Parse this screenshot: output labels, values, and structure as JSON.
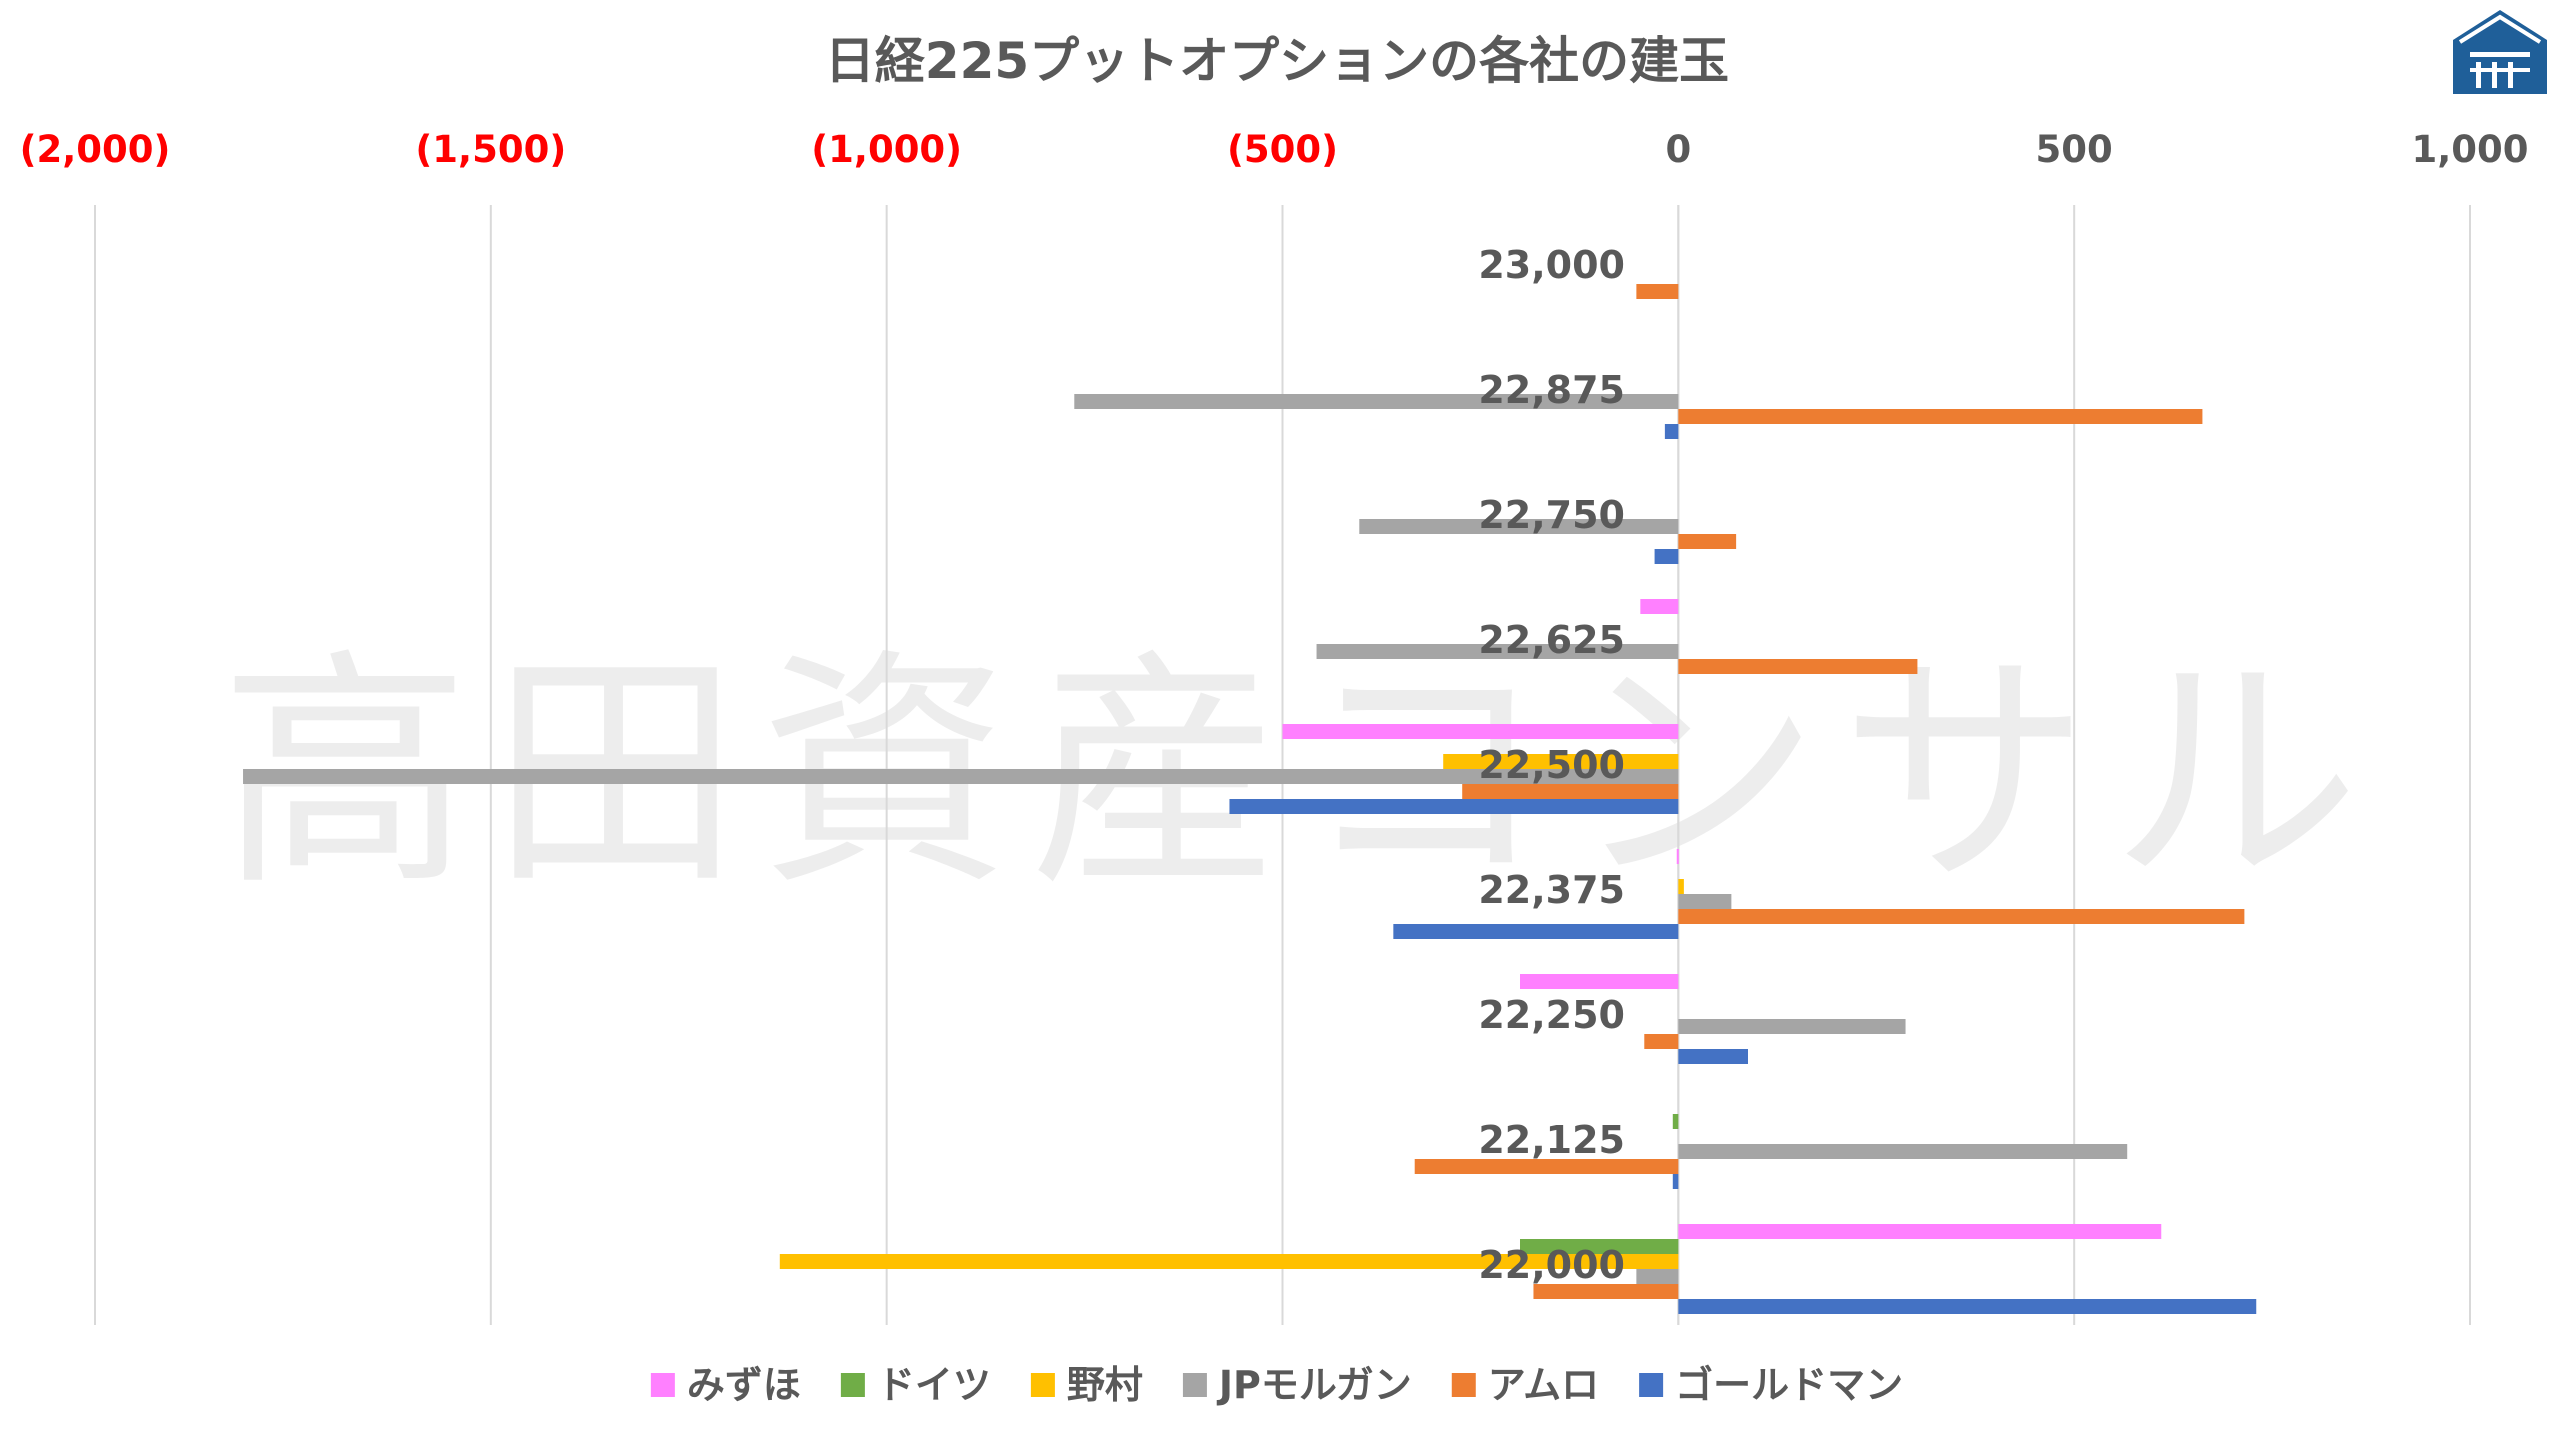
{
  "chart_data": {
    "type": "bar",
    "orientation": "horizontal",
    "title": "日経225プットオプションの各社の建玉",
    "watermark": "高田資産コンサル",
    "xlim": [
      -2000,
      1000
    ],
    "x_ticks": [
      {
        "value": -2000,
        "label": "(2,000)"
      },
      {
        "value": -1500,
        "label": "(1,500)"
      },
      {
        "value": -1000,
        "label": "(1,000)"
      },
      {
        "value": -500,
        "label": "(500)"
      },
      {
        "value": 0,
        "label": "0"
      },
      {
        "value": 500,
        "label": "500"
      },
      {
        "value": 1000,
        "label": "1,000"
      }
    ],
    "negative_tick_color": "#ff0000",
    "positive_tick_color": "#595959",
    "grid": true,
    "legend_position": "bottom",
    "categories": [
      "23,000",
      "22,875",
      "22,750",
      "22,625",
      "22,500",
      "22,375",
      "22,250",
      "22,125",
      "22,000"
    ],
    "series": [
      {
        "name": "みずほ",
        "color": "#ff80ff",
        "values": [
          0,
          0,
          0,
          -48,
          -500,
          -2,
          -200,
          0,
          610
        ]
      },
      {
        "name": "ドイツ",
        "color": "#70ad47",
        "values": [
          0,
          0,
          0,
          0,
          0,
          0,
          0,
          -7,
          -200
        ]
      },
      {
        "name": "野村",
        "color": "#ffc000",
        "values": [
          0,
          0,
          0,
          0,
          -297,
          7,
          0,
          0,
          -1135
        ]
      },
      {
        "name": "JPモルガン",
        "color": "#a5a5a5",
        "values": [
          0,
          -763,
          -403,
          -457,
          -1813,
          67,
          287,
          567,
          -53
        ]
      },
      {
        "name": "アムロ",
        "color": "#ed7d31",
        "values": [
          -53,
          662,
          73,
          302,
          -273,
          715,
          -43,
          -333,
          -183
        ]
      },
      {
        "name": "ゴールドマン",
        "color": "#4472c4",
        "values": [
          0,
          -17,
          -30,
          0,
          -567,
          -360,
          88,
          -7,
          730
        ]
      }
    ]
  }
}
